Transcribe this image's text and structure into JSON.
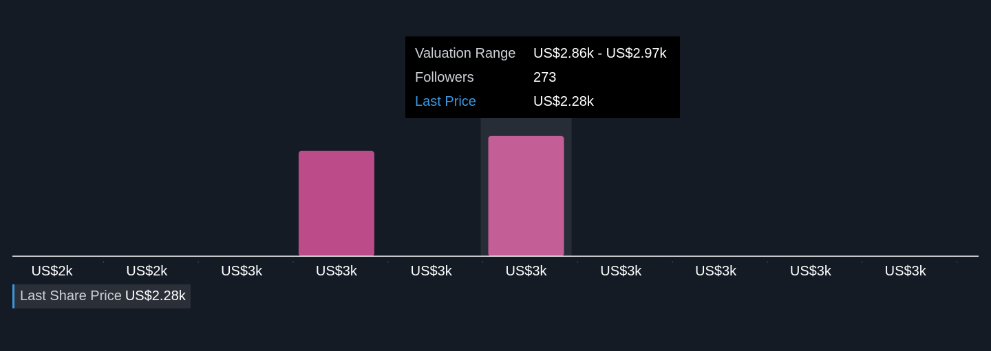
{
  "colors": {
    "background": "#151b25",
    "bar": "#bb4c89",
    "bar_highlight": "#c45e97",
    "highlight_band": "#262d36",
    "axis": "#ffffff",
    "accent": "#3c97e0"
  },
  "chart_data": {
    "type": "bar",
    "categories": [
      "US$2k",
      "US$2k",
      "US$3k",
      "US$3k",
      "US$3k",
      "US$3k",
      "US$3k",
      "US$3k",
      "US$3k",
      "US$3k"
    ],
    "series": [
      {
        "values": [
          0,
          0,
          0,
          239,
          0,
          273,
          0,
          0,
          0,
          0
        ]
      }
    ],
    "highlighted_index": 5,
    "ylim": [
      0,
      290
    ],
    "grid": false,
    "xlabel": "",
    "ylabel": ""
  },
  "tooltip": {
    "rows": [
      {
        "key": "Valuation Range",
        "value": "US$2.86k - US$2.97k",
        "accent": false
      },
      {
        "key": "Followers",
        "value": "273",
        "accent": false
      },
      {
        "key": "Last Price",
        "value": "US$2.28k",
        "accent": true
      }
    ]
  },
  "last_share_price": {
    "label": "Last Share Price",
    "value": "US$2.28k"
  }
}
